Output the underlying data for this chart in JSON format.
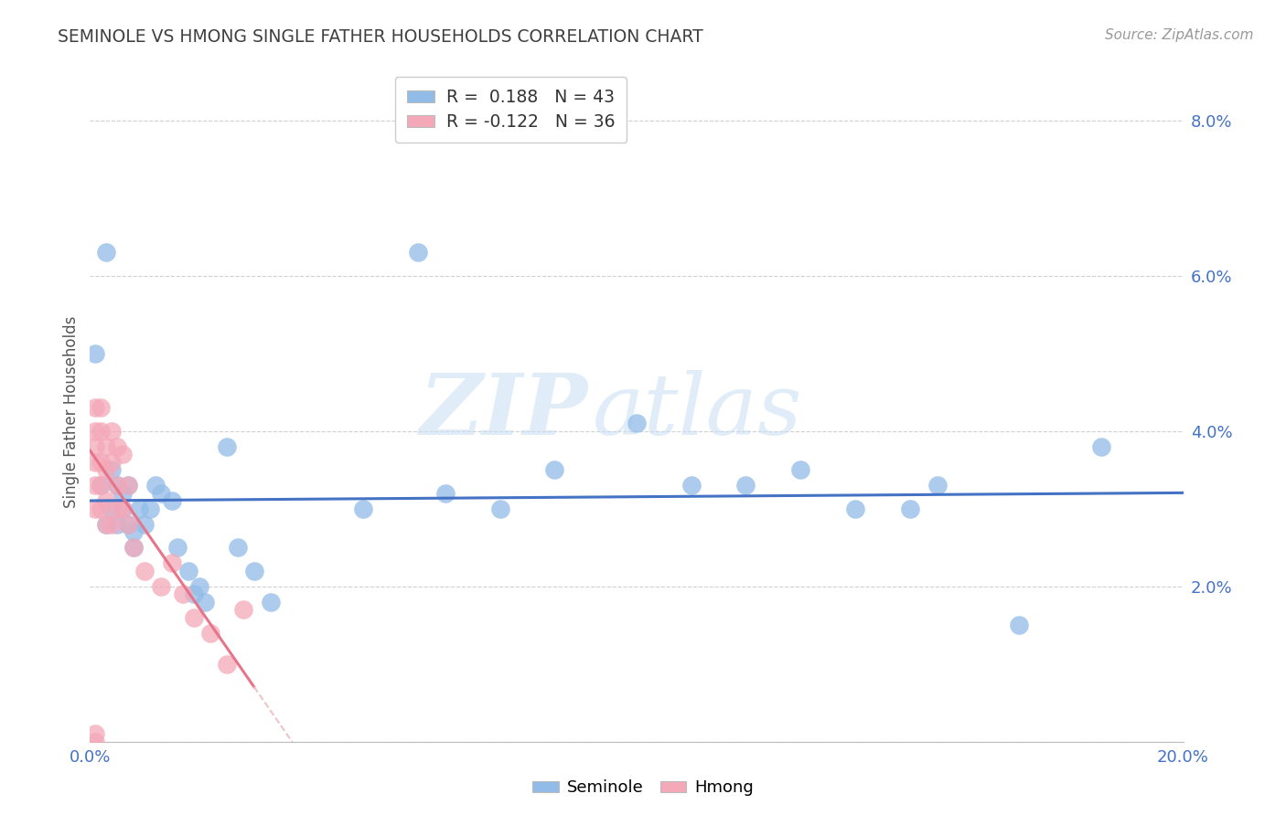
{
  "title": "SEMINOLE VS HMONG SINGLE FATHER HOUSEHOLDS CORRELATION CHART",
  "source": "Source: ZipAtlas.com",
  "ylabel": "Single Father Households",
  "watermark_zip": "ZIP",
  "watermark_atlas": "atlas",
  "xlim": [
    0.0,
    0.2
  ],
  "ylim": [
    0.0,
    0.085
  ],
  "xtick_vals": [
    0.0,
    0.05,
    0.1,
    0.15,
    0.2
  ],
  "xtick_labels": [
    "0.0%",
    "",
    "",
    "",
    "20.0%"
  ],
  "ytick_vals": [
    0.0,
    0.02,
    0.04,
    0.06,
    0.08
  ],
  "ytick_labels": [
    "",
    "2.0%",
    "4.0%",
    "6.0%",
    "8.0%"
  ],
  "seminole_color": "#92bce8",
  "hmong_color": "#f4a8b8",
  "seminole_line_color": "#4472c4",
  "hmong_line_color": "#e8748a",
  "hmong_dash_color": "#f0c0c8",
  "R_seminole": 0.188,
  "N_seminole": 43,
  "R_hmong": -0.122,
  "N_hmong": 36,
  "background_color": "#ffffff",
  "grid_color": "#d0d0d0",
  "title_color": "#404040",
  "axis_color": "#4472c4",
  "seminole_x": [
    0.001,
    0.002,
    0.003,
    0.004,
    0.005,
    0.005,
    0.006,
    0.006,
    0.007,
    0.007,
    0.008,
    0.008,
    0.009,
    0.01,
    0.011,
    0.012,
    0.013,
    0.015,
    0.016,
    0.018,
    0.019,
    0.02,
    0.021,
    0.025,
    0.027,
    0.03,
    0.033,
    0.05,
    0.06,
    0.065,
    0.075,
    0.085,
    0.1,
    0.11,
    0.12,
    0.13,
    0.14,
    0.15,
    0.155,
    0.17,
    0.185,
    0.003,
    0.004
  ],
  "seminole_y": [
    0.05,
    0.033,
    0.028,
    0.035,
    0.033,
    0.028,
    0.032,
    0.03,
    0.033,
    0.028,
    0.027,
    0.025,
    0.03,
    0.028,
    0.03,
    0.033,
    0.032,
    0.031,
    0.025,
    0.022,
    0.019,
    0.02,
    0.018,
    0.038,
    0.025,
    0.022,
    0.018,
    0.03,
    0.063,
    0.032,
    0.03,
    0.035,
    0.041,
    0.033,
    0.033,
    0.035,
    0.03,
    0.03,
    0.033,
    0.015,
    0.038,
    0.063,
    0.03
  ],
  "hmong_x": [
    0.001,
    0.001,
    0.001,
    0.001,
    0.001,
    0.001,
    0.001,
    0.002,
    0.002,
    0.002,
    0.002,
    0.002,
    0.003,
    0.003,
    0.003,
    0.003,
    0.004,
    0.004,
    0.004,
    0.005,
    0.005,
    0.005,
    0.006,
    0.006,
    0.007,
    0.007,
    0.008,
    0.01,
    0.013,
    0.015,
    0.017,
    0.019,
    0.022,
    0.025,
    0.028,
    0.001
  ],
  "hmong_y": [
    0.043,
    0.04,
    0.038,
    0.036,
    0.033,
    0.03,
    0.0,
    0.043,
    0.04,
    0.036,
    0.033,
    0.03,
    0.038,
    0.035,
    0.031,
    0.028,
    0.04,
    0.036,
    0.028,
    0.038,
    0.033,
    0.03,
    0.037,
    0.03,
    0.033,
    0.028,
    0.025,
    0.022,
    0.02,
    0.023,
    0.019,
    0.016,
    0.014,
    0.01,
    0.017,
    0.001
  ]
}
